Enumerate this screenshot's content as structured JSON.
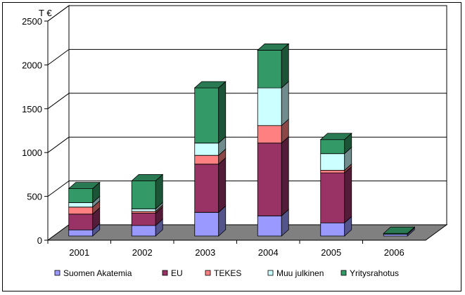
{
  "chart_data": {
    "type": "bar",
    "stacked": true,
    "three_d": true,
    "unit_label": "T €",
    "categories": [
      "2001",
      "2002",
      "2003",
      "2004",
      "2005",
      "2006"
    ],
    "series": [
      {
        "name": "Suomen Akatemia",
        "color": "#9999FF",
        "values": [
          70,
          120,
          270,
          230,
          150,
          20
        ]
      },
      {
        "name": "EU",
        "color": "#993366",
        "values": [
          180,
          140,
          550,
          830,
          570,
          0
        ]
      },
      {
        "name": "TEKES",
        "color": "#FF8080",
        "values": [
          80,
          20,
          100,
          200,
          30,
          0
        ]
      },
      {
        "name": "Muu julkinen",
        "color": "#CCFFFF",
        "values": [
          50,
          30,
          140,
          430,
          190,
          0
        ]
      },
      {
        "name": "Yritysrahotus",
        "color": "#339966",
        "values": [
          160,
          320,
          630,
          430,
          160,
          10
        ]
      }
    ],
    "ylim": [
      0,
      2500
    ],
    "yticks": [
      "0",
      "500",
      "1000",
      "1500",
      "2000",
      "2500"
    ],
    "grid": true,
    "legend": "bottom"
  }
}
